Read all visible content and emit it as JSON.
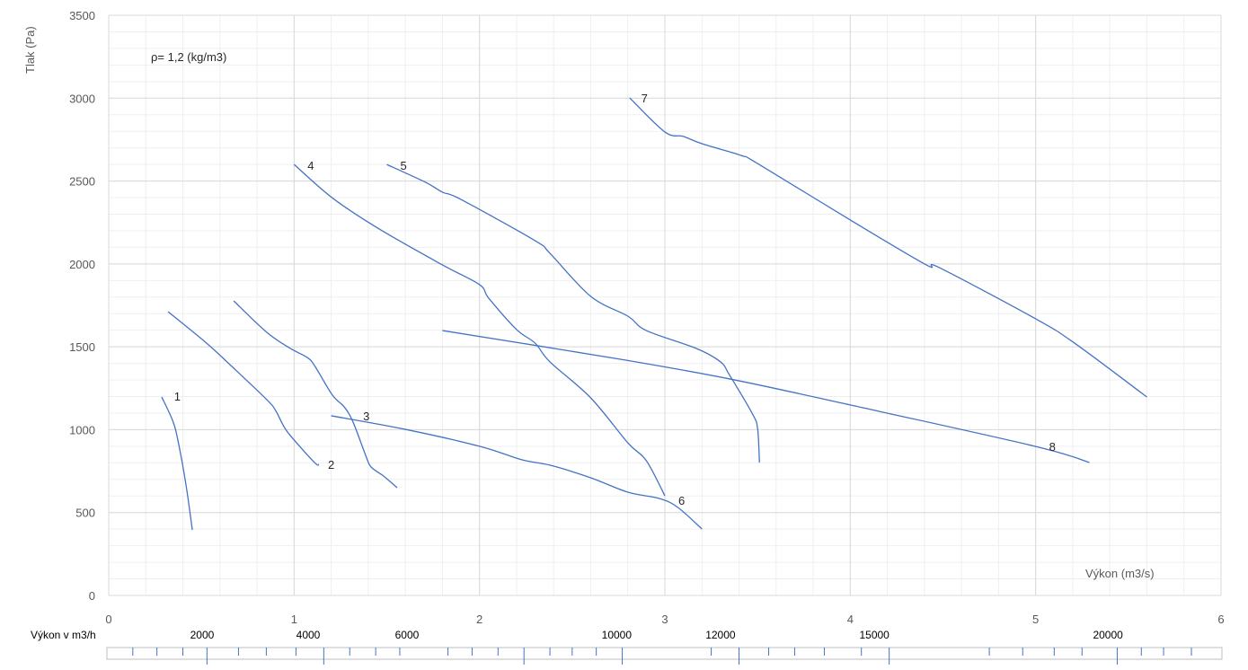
{
  "chart_data": {
    "type": "line",
    "title": "",
    "xlabel": "Výkon (m3/s)",
    "ylabel": "Tlak (Pa)",
    "xlim": [
      0,
      6
    ],
    "ylim": [
      0,
      3500
    ],
    "x_ticks": [
      0,
      1,
      2,
      3,
      4,
      5,
      6
    ],
    "y_ticks": [
      0,
      500,
      1000,
      1500,
      2000,
      2500,
      3000,
      3500
    ],
    "x_minor_step": 0.2,
    "y_minor_step": 100,
    "grid": true,
    "line_color": "#4472C4",
    "annotation": "ρ= 1,2 (kg/m3)",
    "series": [
      {
        "name": "1",
        "label_at": [
          0.37,
          1203
        ],
        "points": [
          [
            0.286,
            1197
          ],
          [
            0.344,
            1057
          ],
          [
            0.373,
            937
          ],
          [
            0.417,
            666
          ],
          [
            0.451,
            395
          ]
        ]
      },
      {
        "name": "2",
        "label_at": [
          1.2,
          791
        ],
        "points": [
          [
            0.32,
            1712
          ],
          [
            0.528,
            1522
          ],
          [
            0.659,
            1387
          ],
          [
            0.853,
            1181
          ],
          [
            0.9,
            1116
          ],
          [
            0.94,
            1029
          ],
          [
            0.98,
            964
          ],
          [
            1.11,
            802
          ],
          [
            1.134,
            791
          ]
        ]
      },
      {
        "name": "",
        "label_at": null,
        "points": [
          [
            0.674,
            1777
          ],
          [
            0.853,
            1587
          ],
          [
            0.98,
            1490
          ],
          [
            1.07,
            1436
          ],
          [
            1.11,
            1387
          ],
          [
            1.207,
            1208
          ],
          [
            1.27,
            1138
          ],
          [
            1.318,
            1046
          ],
          [
            1.386,
            845
          ],
          [
            1.415,
            775
          ],
          [
            1.483,
            720
          ],
          [
            1.556,
            650
          ]
        ]
      },
      {
        "name": "3",
        "label_at": [
          1.39,
          1084
        ],
        "points": [
          [
            1.2,
            1084
          ],
          [
            1.6,
            1002
          ],
          [
            2.0,
            900
          ],
          [
            2.23,
            818
          ],
          [
            2.38,
            786
          ],
          [
            2.6,
            710
          ],
          [
            2.8,
            623
          ],
          [
            2.97,
            585
          ],
          [
            3.07,
            531
          ],
          [
            3.2,
            401
          ]
        ]
      },
      {
        "name": "4",
        "label_at": [
          1.09,
          2595
        ],
        "points": [
          [
            1.0,
            2600
          ],
          [
            1.21,
            2395
          ],
          [
            1.46,
            2210
          ],
          [
            1.8,
            1994
          ],
          [
            2.0,
            1875
          ],
          [
            2.05,
            1793
          ],
          [
            2.2,
            1604
          ],
          [
            2.3,
            1522
          ],
          [
            2.38,
            1409
          ],
          [
            2.6,
            1192
          ],
          [
            2.8,
            921
          ],
          [
            2.9,
            813
          ],
          [
            3.0,
            601
          ]
        ]
      },
      {
        "name": "5",
        "label_at": [
          1.59,
          2595
        ],
        "points": [
          [
            1.5,
            2600
          ],
          [
            1.71,
            2492
          ],
          [
            1.8,
            2433
          ],
          [
            1.9,
            2389
          ],
          [
            2.3,
            2140
          ],
          [
            2.38,
            2064
          ],
          [
            2.6,
            1804
          ],
          [
            2.8,
            1685
          ],
          [
            2.9,
            1598
          ],
          [
            3.17,
            1490
          ],
          [
            3.3,
            1409
          ],
          [
            3.35,
            1327
          ],
          [
            3.47,
            1100
          ],
          [
            3.5,
            1008
          ],
          [
            3.51,
            802
          ]
        ]
      },
      {
        "name": "6",
        "label_at": [
          3.09,
          574
        ],
        "points": []
      },
      {
        "name": "7",
        "label_at": [
          2.89,
          3002
        ],
        "points": [
          [
            2.81,
            3002
          ],
          [
            3.0,
            2796
          ],
          [
            3.1,
            2769
          ],
          [
            3.2,
            2725
          ],
          [
            3.41,
            2655
          ],
          [
            3.5,
            2606
          ],
          [
            4.0,
            2265
          ],
          [
            4.41,
            1994
          ],
          [
            4.48,
            1978
          ],
          [
            5.0,
            1669
          ],
          [
            5.21,
            1522
          ],
          [
            5.6,
            1197
          ]
        ]
      },
      {
        "name": "8",
        "label_at": [
          5.09,
          899
        ],
        "points": [
          [
            1.8,
            1598
          ],
          [
            2.76,
            1425
          ],
          [
            3.35,
            1306
          ],
          [
            4.0,
            1149
          ],
          [
            5.0,
            899
          ],
          [
            5.29,
            802
          ]
        ]
      }
    ],
    "secondary_axis": {
      "title": "Výkon v m3/h",
      "labels": [
        {
          "text": "2000",
          "at": 0.504
        },
        {
          "text": "4000",
          "at": 1.076
        },
        {
          "text": "6000",
          "at": 1.609
        },
        {
          "text": "10000",
          "at": 2.74
        },
        {
          "text": "12000",
          "at": 3.3
        },
        {
          "text": "15000",
          "at": 4.13
        },
        {
          "text": "20000",
          "at": 5.39
        }
      ],
      "major_ticks": [
        0.53,
        1.16,
        2.24,
        2.77,
        3.4,
        4.21,
        5.44
      ],
      "minor_ticks": [
        0.13,
        0.26,
        0.4,
        0.7,
        0.85,
        1.01,
        1.3,
        1.44,
        1.57,
        1.83,
        1.96,
        2.1,
        2.38,
        2.5,
        2.63,
        3.25,
        3.56,
        3.7,
        3.86,
        4.06,
        4.75,
        4.93,
        5.1,
        5.25,
        5.57,
        5.69,
        5.84
      ]
    }
  }
}
